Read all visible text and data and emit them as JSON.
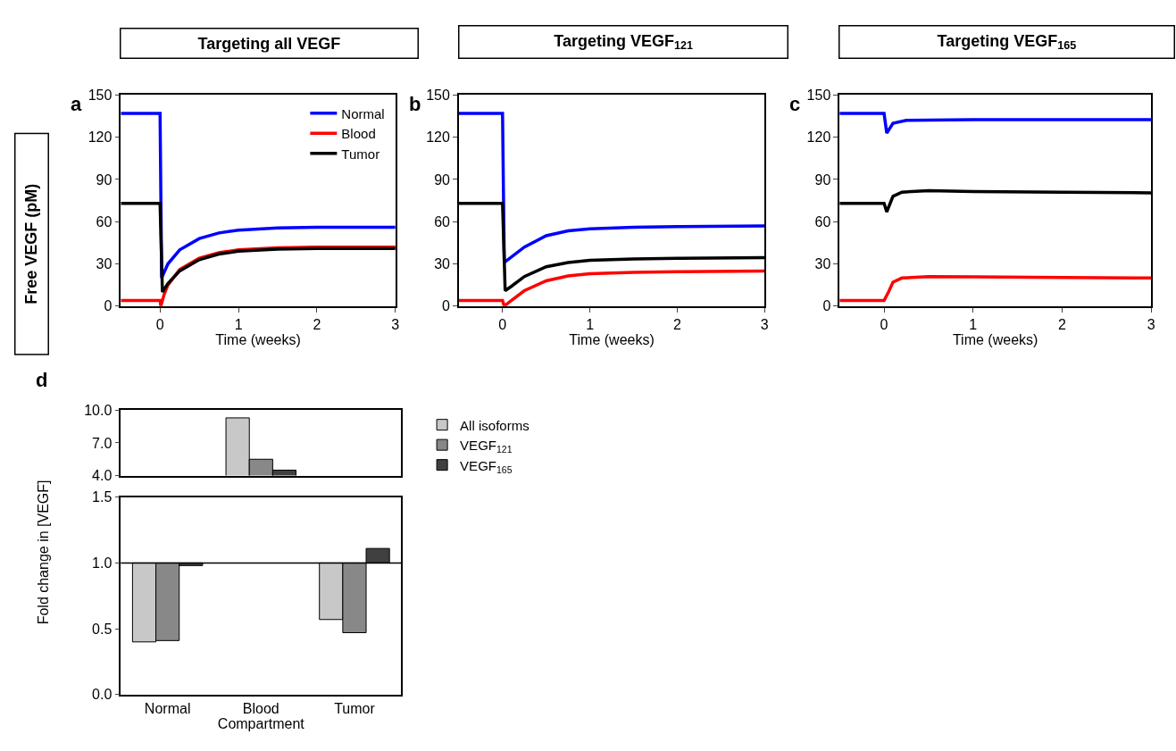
{
  "chart_data": [
    {
      "type": "line",
      "title": "Targeting all VEGF",
      "xlabel": "Time (weeks)",
      "ylabel": "Free VEGF (pM)",
      "annotations": [
        "a"
      ],
      "xlim": [
        -0.5,
        3
      ],
      "xticks": [
        0,
        1,
        2,
        3
      ],
      "ylim": [
        0,
        150
      ],
      "yticks": [
        0,
        30,
        60,
        90,
        120,
        150
      ],
      "legend": "top right",
      "series": [
        {
          "name": "Normal",
          "color": "#0000ff",
          "x": [
            -0.5,
            0,
            0.02,
            0.1,
            0.25,
            0.5,
            0.75,
            1,
            1.5,
            2,
            3
          ],
          "values": [
            137,
            137,
            20,
            30,
            40,
            48,
            52,
            54,
            55.5,
            56,
            56
          ]
        },
        {
          "name": "Blood",
          "color": "#ff0000",
          "x": [
            -0.5,
            0,
            0.01,
            0.05,
            0.1,
            0.25,
            0.5,
            0.75,
            1,
            1.5,
            2,
            3
          ],
          "values": [
            4,
            4,
            0,
            8,
            15,
            26,
            34,
            38,
            40,
            41.5,
            42,
            42
          ]
        },
        {
          "name": "Tumor",
          "color": "#000000",
          "x": [
            -0.5,
            0,
            0.03,
            0.1,
            0.25,
            0.5,
            0.75,
            1,
            1.5,
            2,
            3
          ],
          "values": [
            73,
            73,
            10,
            16,
            25,
            33,
            37,
            39,
            40.5,
            41,
            41
          ]
        }
      ]
    },
    {
      "type": "line",
      "title": "Targeting VEGF$_{121}$",
      "xlabel": "Time (weeks)",
      "annotations": [
        "b"
      ],
      "xlim": [
        -0.5,
        3
      ],
      "xticks": [
        0,
        1,
        2,
        3
      ],
      "ylim": [
        0,
        150
      ],
      "yticks": [
        0,
        30,
        60,
        90,
        120,
        150
      ],
      "series": [
        {
          "color": "#0000ff",
          "x": [
            -0.5,
            0,
            0.02,
            0.25,
            0.5,
            0.75,
            1,
            1.5,
            2,
            3
          ],
          "values": [
            137,
            137,
            31,
            42,
            50,
            53.5,
            55,
            56,
            56.5,
            57
          ]
        },
        {
          "color": "#ff0000",
          "x": [
            -0.5,
            0,
            0.02,
            0.1,
            0.25,
            0.5,
            0.75,
            1,
            1.5,
            2,
            3
          ],
          "values": [
            4,
            4,
            0,
            4,
            11,
            18,
            21.5,
            23,
            24,
            24.5,
            25
          ]
        },
        {
          "color": "#000000",
          "x": [
            -0.5,
            0,
            0.03,
            0.1,
            0.25,
            0.5,
            0.75,
            1,
            1.5,
            2,
            3
          ],
          "values": [
            73,
            73,
            11,
            14,
            21,
            28,
            31,
            32.5,
            33.5,
            34,
            34.5
          ]
        }
      ]
    },
    {
      "type": "line",
      "title": "Targeting VEGF$_{165}$",
      "xlabel": "Time (weeks)",
      "annotations": [
        "c"
      ],
      "xlim": [
        -0.5,
        3
      ],
      "xticks": [
        0,
        1,
        2,
        3
      ],
      "ylim": [
        0,
        150
      ],
      "yticks": [
        0,
        30,
        60,
        90,
        120,
        150
      ],
      "series": [
        {
          "color": "#0000ff",
          "x": [
            -0.5,
            0,
            0.03,
            0.1,
            0.25,
            1,
            3
          ],
          "values": [
            137,
            137,
            123,
            130,
            132,
            132.5,
            132.5
          ]
        },
        {
          "color": "#ff0000",
          "x": [
            -0.5,
            0,
            0.05,
            0.1,
            0.2,
            0.5,
            1,
            2,
            3
          ],
          "values": [
            4,
            4,
            10,
            17,
            20,
            21,
            20.8,
            20.3,
            20
          ]
        },
        {
          "color": "#000000",
          "x": [
            -0.5,
            0,
            0.03,
            0.1,
            0.2,
            0.5,
            1,
            2,
            3
          ],
          "values": [
            73,
            73,
            67,
            78,
            81,
            82,
            81.5,
            81,
            80.5
          ]
        }
      ]
    },
    {
      "type": "bar",
      "annotations": [
        "d"
      ],
      "categories": [
        null,
        null,
        null
      ],
      "ylim": [
        4,
        10
      ],
      "yticks": [
        {
          "value": 4,
          "label": "4.0"
        },
        {
          "value": 7,
          "label": "7.0"
        },
        {
          "value": 10,
          "label": "10.0"
        }
      ],
      "tick_labels": "y",
      "legend": "right",
      "series": [
        {
          "name": "All isoforms",
          "color": "#c8c8c8",
          "values": [
            null,
            9.3,
            null
          ]
        },
        {
          "name": "VEGF$_{121}$",
          "color": "#888888",
          "values": [
            null,
            5.5,
            null
          ]
        },
        {
          "name": "VEGF$_{165}$",
          "color": "#404040",
          "values": [
            null,
            4.5,
            null
          ]
        }
      ]
    },
    {
      "type": "bar",
      "xlabel": "Compartment",
      "ylabel": "Fold change in [VEGF]",
      "categories": [
        "Normal",
        "Blood",
        "Tumor"
      ],
      "ylim": [
        0,
        1.5
      ],
      "yticks": [
        {
          "value": 0,
          "label": "0.0"
        },
        {
          "value": 0.5,
          "label": "0.5"
        },
        {
          "value": 1,
          "label": "1.0"
        },
        {
          "value": 1.5,
          "label": "1.5"
        }
      ],
      "ref_lines": [
        {
          "axis": "y",
          "value": 1,
          "color": "#000000"
        }
      ],
      "series": [
        {
          "color": "#c8c8c8",
          "base": [
            1,
            null,
            1
          ],
          "values": [
            -0.6,
            null,
            -0.43
          ]
        },
        {
          "color": "#888888",
          "base": [
            1,
            null,
            1
          ],
          "values": [
            -0.59,
            null,
            -0.53
          ]
        },
        {
          "color": "#404040",
          "base": [
            1,
            null,
            1
          ],
          "values": [
            -0.02,
            null,
            0.11
          ]
        }
      ]
    }
  ]
}
